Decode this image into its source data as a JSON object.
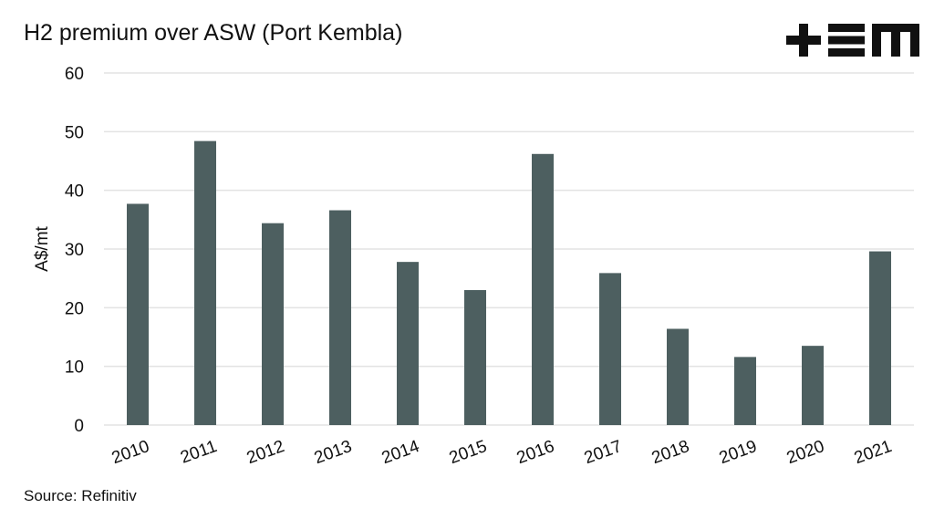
{
  "chart_data": {
    "type": "bar",
    "title": "H2 premium over ASW (Port Kembla)",
    "xlabel": "",
    "ylabel": "A$/mt",
    "categories": [
      "2010",
      "2011",
      "2012",
      "2013",
      "2014",
      "2015",
      "2016",
      "2017",
      "2018",
      "2019",
      "2020",
      "2021"
    ],
    "values": [
      37.7,
      48.4,
      34.4,
      36.6,
      27.8,
      23.0,
      46.2,
      25.9,
      16.4,
      11.6,
      13.5,
      29.6
    ],
    "ylim": [
      0,
      60
    ],
    "yticks": [
      "0",
      "10",
      "20",
      "30",
      "40",
      "50",
      "60"
    ],
    "grid": true,
    "legend": "none",
    "bar_color": "#4d5f60",
    "source": "Source: Refinitiv"
  },
  "logo": {
    "text": "+EM"
  }
}
